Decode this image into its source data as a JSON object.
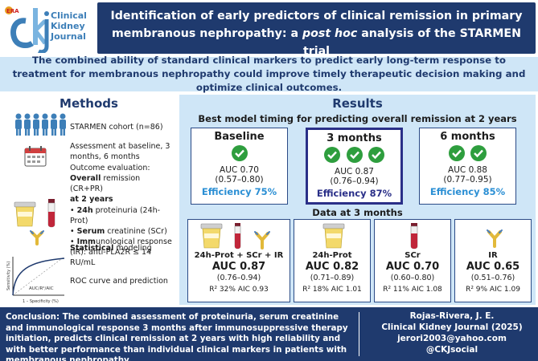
{
  "header": {
    "journal_name": "Clinical Kidney Journal",
    "logo_badge": "ERA",
    "logo_letters": "ckj",
    "title": "Identification of early predictors of clinical remission in primary membranous nephropathy: a post hoc analysis of the STARMEN trial",
    "title_part1": "Identification of early predictors of clinical remission in primary membranous nephropathy: a ",
    "title_italic": "post hoc",
    "title_part2": " analysis of the STARMEN trial"
  },
  "intro": "The combined ability of standard clinical markers to predict early long-term response to treatment for membranous nephropathy could improve timely therapeutic decision making and optimize clinical outcomes.",
  "methods": {
    "heading": "Methods",
    "cohort": "STARMEN cohort (n=86)",
    "assessment": "Assessment at baseline, 3 months, 6 months",
    "outcome_label": "Outcome evaluation:",
    "outcome_bold": "Overall",
    "outcome_rest": "remission (CR+PR)",
    "outcome_time": "at 2 years",
    "markers": [
      {
        "bold": "24h",
        "rest": "proteinuria (24h-Prot)"
      },
      {
        "bold": "Serum",
        "rest": "creatinine (SCr)"
      },
      {
        "bold": "Imm",
        "rest": "unological response (IR): anti-PLA2R ≤ 14 RU/mL"
      }
    ],
    "stat_bold": "Statistical",
    "stat_rest": "modeling",
    "roc": "ROC curve and prediction",
    "roc_ylabel": "Sensitivity (%)",
    "roc_xlabel": "1 – Specificity (%)",
    "roc_curve_label": "AUC/R²/AIC"
  },
  "results": {
    "heading": "Results",
    "timing_heading": "Best model timing for predicting overall remission at 2 years",
    "timepoints": [
      {
        "label": "Baseline",
        "checks": 1,
        "auc": "AUC 0.70",
        "ci": "(0.57–0.80)",
        "efficiency": "Efficiency 75%",
        "best": false
      },
      {
        "label": "3 months",
        "checks": 3,
        "auc": "AUC 0.87",
        "ci": "(0.76–0.94)",
        "efficiency": "Efficiency 87%",
        "best": true
      },
      {
        "label": "6 months",
        "checks": 2,
        "auc": "AUC 0.88",
        "ci": "(0.77–0.95)",
        "efficiency": "Efficiency 85%",
        "best": false
      }
    ],
    "data3m_heading": "Data at 3 months",
    "models": [
      {
        "label": "24h-Prot + SCr + IR",
        "auc": "AUC 0.87",
        "ci": "(0.76–0.94)",
        "stats": "R² 32% AIC 0.93"
      },
      {
        "label": "24h-Prot",
        "auc": "AUC 0.82",
        "ci": "(0.71–0.89)",
        "stats": "R² 18% AIC 1.01"
      },
      {
        "label": "SCr",
        "auc": "AUC 0.70",
        "ci": "(0.60–0.80)",
        "stats": "R² 11% AIC 1.08"
      },
      {
        "label": "IR",
        "auc": "AUC 0.65",
        "ci": "(0.51–0.76)",
        "stats": "R² 9% AIC 1.09"
      }
    ]
  },
  "conclusion": {
    "text": "Conclusion: The combined assessment of proteinuria, serum creatinine and immunological response 3 months after immunosuppressive therapy initiation, predicts clinical remission at 2 years with high reliability and with better performance than individual clinical markers in patients with membranous nephropathy."
  },
  "credit": {
    "authors": "Rojas-Rivera, J. E.",
    "journal": "Clinical Kidney Journal (2025)",
    "email": "jerori2003@yahoo.com",
    "social": "@CKJsocial"
  },
  "colors": {
    "navy": "#1f3a6e",
    "light_blue_bg": "#cfe6f7",
    "check_green": "#2e9e3e",
    "efficiency_blue": "#2b8fd4",
    "best_purple": "#2a2f88"
  }
}
